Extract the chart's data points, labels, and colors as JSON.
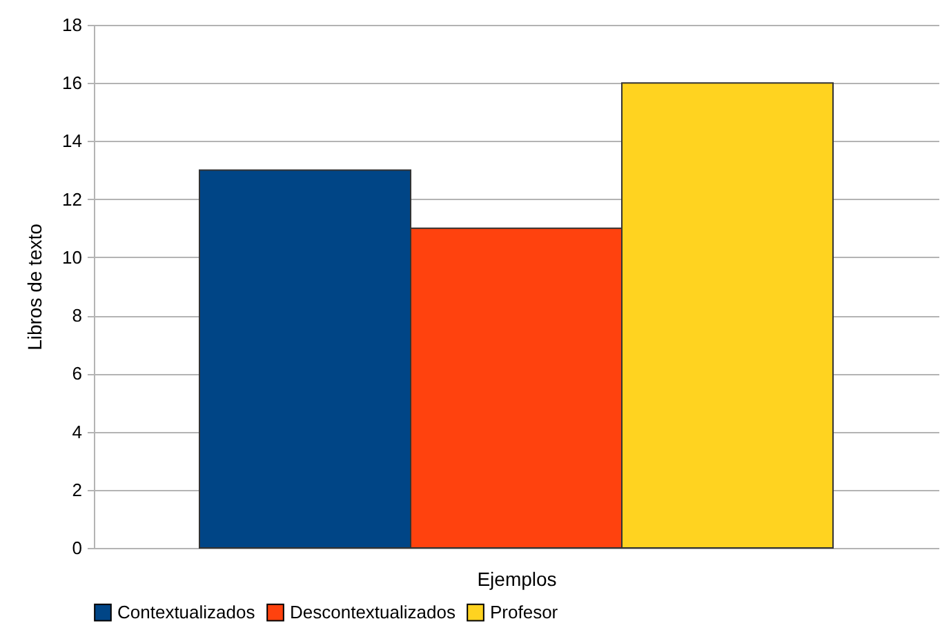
{
  "chart_data": {
    "type": "bar",
    "xlabel": "Ejemplos",
    "ylabel": "Libros de texto",
    "categories": [
      null
    ],
    "series": [
      {
        "name": "Contextualizados",
        "color": "#004586",
        "values": [
          13
        ]
      },
      {
        "name": "Descontextualizados",
        "color": "#ff420e",
        "values": [
          11
        ]
      },
      {
        "name": "Profesor",
        "color": "#ffd320",
        "values": [
          16
        ]
      }
    ],
    "ylim": [
      0,
      18
    ],
    "yticks": [
      0,
      2,
      4,
      6,
      8,
      10,
      12,
      14,
      16,
      18
    ],
    "grid": "y",
    "legend": "bottom"
  }
}
